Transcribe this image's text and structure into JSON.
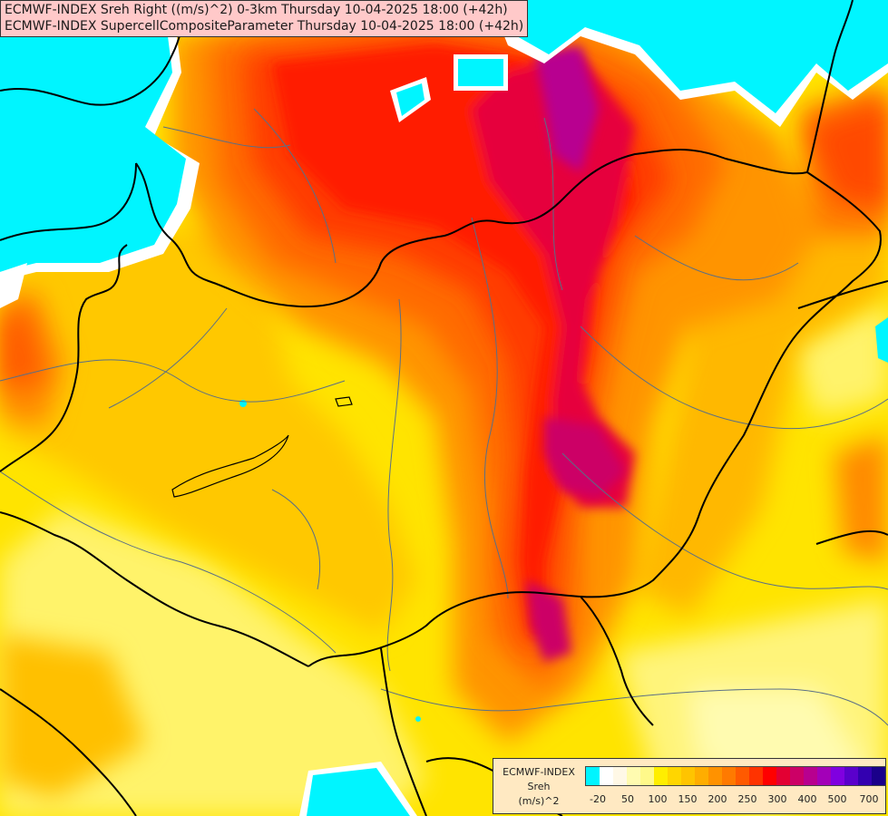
{
  "header": {
    "line1": "ECMWF-INDEX Sreh Right ((m/s)^2) 0-3km Thursday 10-04-2025 18:00 (+42h)",
    "line2": "ECMWF-INDEX SupercellCompositeParameter Thursday 10-04-2025 18:00 (+42h)"
  },
  "legend": {
    "title1": "ECMWF-INDEX",
    "title2": "Sreh",
    "unit": "(m/s)^2",
    "colors": [
      "#00f5ff",
      "#ffffff",
      "#fff8e6",
      "#fffbb0",
      "#fff98a",
      "#ffee00",
      "#ffd600",
      "#ffc400",
      "#ffad00",
      "#ff9200",
      "#ff7a00",
      "#ff5a00",
      "#ff3300",
      "#ff0000",
      "#e30033",
      "#cc0066",
      "#b8008f",
      "#a300b8",
      "#8000e0",
      "#5a00cc",
      "#3300b0",
      "#1a008a"
    ],
    "ticks": [
      "-20",
      "50",
      "100",
      "150",
      "200",
      "250",
      "300",
      "400",
      "500",
      "700"
    ]
  },
  "palette": {
    "cyan": "#00f5ff",
    "white": "#ffffff",
    "yellow": "#ffee00",
    "yellow_light": "#fff88a",
    "gold": "#ffd000",
    "orange_light": "#ffb000",
    "orange": "#ff9000",
    "orange_dark": "#ff6a00",
    "red_orange": "#ff4500",
    "red": "#ff1a00",
    "crimson": "#e8003a",
    "magenta": "#c40080",
    "purple": "#a800c0",
    "border_country": "#000000",
    "border_region": "#5a6f86"
  }
}
